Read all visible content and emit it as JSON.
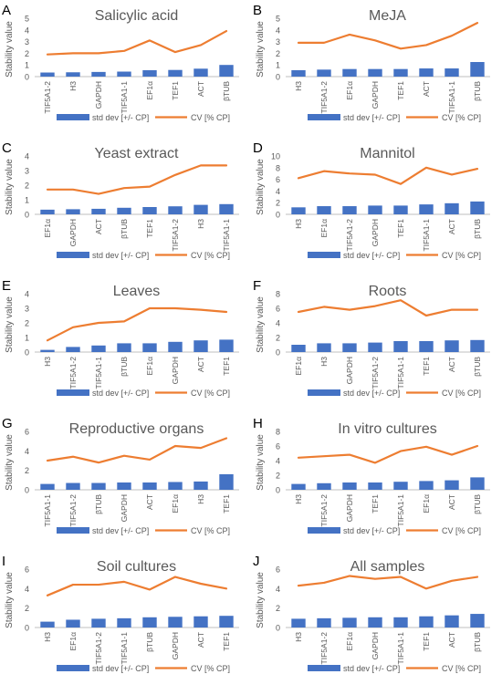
{
  "legend": {
    "bar_label": "std dev [+/- CP]",
    "line_label": "CV [% CP]"
  },
  "colors": {
    "bar": "#4472C4",
    "line": "#ED7D31",
    "axis": "#BFBFBF",
    "text": "#595959",
    "panel_letter": "#000000"
  },
  "chart_data": [
    {
      "type": "bar+line",
      "panel": "A",
      "title": "Salicylic acid",
      "ylabel": "Stability value",
      "ylim": [
        0,
        5
      ],
      "yticks": [
        0,
        1,
        2,
        3,
        4,
        5
      ],
      "categories": [
        "TIF5A1-2",
        "H3",
        "GAPDH",
        "TIF5A1-1",
        "EF1α",
        "TEF1",
        "ACT",
        "βTUB"
      ],
      "series": [
        {
          "name": "std dev [+/- CP]",
          "type": "bar",
          "values": [
            0.35,
            0.37,
            0.4,
            0.43,
            0.55,
            0.57,
            0.68,
            1.0
          ]
        },
        {
          "name": "CV [% CP]",
          "type": "line",
          "values": [
            1.9,
            2.0,
            2.0,
            2.2,
            3.1,
            2.1,
            2.7,
            3.9
          ]
        }
      ]
    },
    {
      "type": "bar+line",
      "panel": "B",
      "title": "MeJA",
      "ylabel": "Stability value",
      "ylim": [
        0,
        5
      ],
      "yticks": [
        0,
        1,
        2,
        3,
        4,
        5
      ],
      "categories": [
        "H3",
        "TIF5A1-2",
        "EF1α",
        "GAPDH",
        "TEF1",
        "ACT",
        "TIF5A1-1",
        "βTUB"
      ],
      "series": [
        {
          "name": "std dev [+/- CP]",
          "type": "bar",
          "values": [
            0.55,
            0.6,
            0.65,
            0.65,
            0.65,
            0.7,
            0.7,
            1.25
          ]
        },
        {
          "name": "CV [% CP]",
          "type": "line",
          "values": [
            2.9,
            2.9,
            3.6,
            3.1,
            2.4,
            2.7,
            3.5,
            4.6
          ]
        }
      ]
    },
    {
      "type": "bar+line",
      "panel": "C",
      "title": "Yeast extract",
      "ylabel": "Stability value",
      "ylim": [
        0,
        4
      ],
      "yticks": [
        0,
        1,
        2,
        3,
        4
      ],
      "categories": [
        "EF1α",
        "GAPDH",
        "ACT",
        "βTUB",
        "TEF1",
        "TIF5A1-2",
        "H3",
        "TIF5A1-1"
      ],
      "series": [
        {
          "name": "std dev [+/- CP]",
          "type": "bar",
          "values": [
            0.32,
            0.35,
            0.38,
            0.45,
            0.5,
            0.55,
            0.65,
            0.7
          ]
        },
        {
          "name": "CV [% CP]",
          "type": "line",
          "values": [
            1.7,
            1.7,
            1.4,
            1.8,
            1.9,
            2.7,
            3.35,
            3.35
          ]
        }
      ]
    },
    {
      "type": "bar+line",
      "panel": "D",
      "title": "Mannitol",
      "ylabel": "Stability value",
      "ylim": [
        0,
        10
      ],
      "yticks": [
        0,
        2,
        4,
        6,
        8,
        10
      ],
      "categories": [
        "H3",
        "EF1α",
        "TIF5A1-2",
        "GAPDH",
        "TEF1",
        "TIF5A1-1",
        "ACT",
        "βTUB"
      ],
      "series": [
        {
          "name": "std dev [+/- CP]",
          "type": "bar",
          "values": [
            1.2,
            1.4,
            1.4,
            1.5,
            1.5,
            1.7,
            1.9,
            2.2
          ]
        },
        {
          "name": "CV [% CP]",
          "type": "line",
          "values": [
            6.2,
            7.4,
            7.0,
            6.8,
            5.2,
            8.0,
            6.8,
            7.8
          ]
        }
      ]
    },
    {
      "type": "bar+line",
      "panel": "E",
      "title": "Leaves",
      "ylabel": "Stability value",
      "ylim": [
        0,
        4
      ],
      "yticks": [
        0,
        1,
        2,
        3,
        4
      ],
      "categories": [
        "H3",
        "TIF5A1-2",
        "TIF5A1-1",
        "βTUB",
        "EF1α",
        "GAPDH",
        "ACT",
        "TEF1"
      ],
      "series": [
        {
          "name": "std dev [+/- CP]",
          "type": "bar",
          "values": [
            0.15,
            0.35,
            0.45,
            0.6,
            0.6,
            0.7,
            0.8,
            0.85
          ]
        },
        {
          "name": "CV [% CP]",
          "type": "line",
          "values": [
            0.8,
            1.7,
            2.0,
            2.1,
            3.0,
            3.0,
            2.9,
            2.75
          ]
        }
      ]
    },
    {
      "type": "bar+line",
      "panel": "F",
      "title": "Roots",
      "ylabel": "Stability value",
      "ylim": [
        0,
        8
      ],
      "yticks": [
        0,
        2,
        4,
        6,
        8
      ],
      "categories": [
        "EF1α",
        "H3",
        "GAPDH",
        "TIF5A1-2",
        "TIF5A1-1",
        "TEF1",
        "ACT",
        "βTUB"
      ],
      "series": [
        {
          "name": "std dev [+/- CP]",
          "type": "bar",
          "values": [
            1.0,
            1.2,
            1.2,
            1.3,
            1.5,
            1.5,
            1.6,
            1.65
          ]
        },
        {
          "name": "CV [% CP]",
          "type": "line",
          "values": [
            5.5,
            6.2,
            5.8,
            6.3,
            7.1,
            5.0,
            5.8,
            5.8
          ]
        }
      ]
    },
    {
      "type": "bar+line",
      "panel": "G",
      "title": "Reproductive organs",
      "ylabel": "Stability value",
      "ylim": [
        0,
        6
      ],
      "yticks": [
        0,
        2,
        4,
        6
      ],
      "categories": [
        "TIF5A1-1",
        "TIF5A1-2",
        "βTUB",
        "GAPDH",
        "ACT",
        "EF1α",
        "H3",
        "TEF1"
      ],
      "series": [
        {
          "name": "std dev [+/- CP]",
          "type": "bar",
          "values": [
            0.6,
            0.7,
            0.7,
            0.75,
            0.75,
            0.8,
            0.85,
            1.6
          ]
        },
        {
          "name": "CV [% CP]",
          "type": "line",
          "values": [
            3.0,
            3.4,
            2.8,
            3.5,
            3.1,
            4.5,
            4.3,
            5.3
          ]
        }
      ]
    },
    {
      "type": "bar+line",
      "panel": "H",
      "title": "In vitro cultures",
      "ylabel": "Stability value",
      "ylim": [
        0,
        8
      ],
      "yticks": [
        0,
        2,
        4,
        6,
        8
      ],
      "categories": [
        "H3",
        "TIF5A1-2",
        "GAPDH",
        "TEF1",
        "TIF5A1-1",
        "EF1α",
        "ACT",
        "βTUB"
      ],
      "series": [
        {
          "name": "std dev [+/- CP]",
          "type": "bar",
          "values": [
            0.8,
            0.9,
            1.0,
            1.0,
            1.1,
            1.2,
            1.3,
            1.7
          ]
        },
        {
          "name": "CV [% CP]",
          "type": "line",
          "values": [
            4.4,
            4.6,
            4.8,
            3.7,
            5.3,
            5.9,
            4.8,
            6.0
          ]
        }
      ]
    },
    {
      "type": "bar+line",
      "panel": "I",
      "title": "Soil cultures",
      "ylabel": "Stability value",
      "ylim": [
        0,
        6
      ],
      "yticks": [
        0,
        2,
        4,
        6
      ],
      "categories": [
        "H3",
        "EF1α",
        "TIF5A1-2",
        "TIF5A1-1",
        "βTUB",
        "GAPDH",
        "ACT",
        "TEF1"
      ],
      "series": [
        {
          "name": "std dev [+/- CP]",
          "type": "bar",
          "values": [
            0.6,
            0.8,
            0.9,
            0.95,
            1.05,
            1.1,
            1.15,
            1.2
          ]
        },
        {
          "name": "CV [% CP]",
          "type": "line",
          "values": [
            3.3,
            4.4,
            4.4,
            4.7,
            3.9,
            5.2,
            4.5,
            4.0
          ]
        }
      ]
    },
    {
      "type": "bar+line",
      "panel": "J",
      "title": "All samples",
      "ylabel": "Stability value",
      "ylim": [
        0,
        6
      ],
      "yticks": [
        0,
        2,
        4,
        6
      ],
      "categories": [
        "H3",
        "TIF5A1-2",
        "EF1α",
        "GAPDH",
        "TIF5A1-1",
        "TEF1",
        "ACT",
        "βTUB"
      ],
      "series": [
        {
          "name": "std dev [+/- CP]",
          "type": "bar",
          "values": [
            0.9,
            0.95,
            1.0,
            1.05,
            1.05,
            1.15,
            1.25,
            1.4
          ]
        },
        {
          "name": "CV [% CP]",
          "type": "line",
          "values": [
            4.3,
            4.6,
            5.3,
            5.0,
            5.2,
            4.0,
            4.8,
            5.2
          ]
        }
      ]
    }
  ]
}
